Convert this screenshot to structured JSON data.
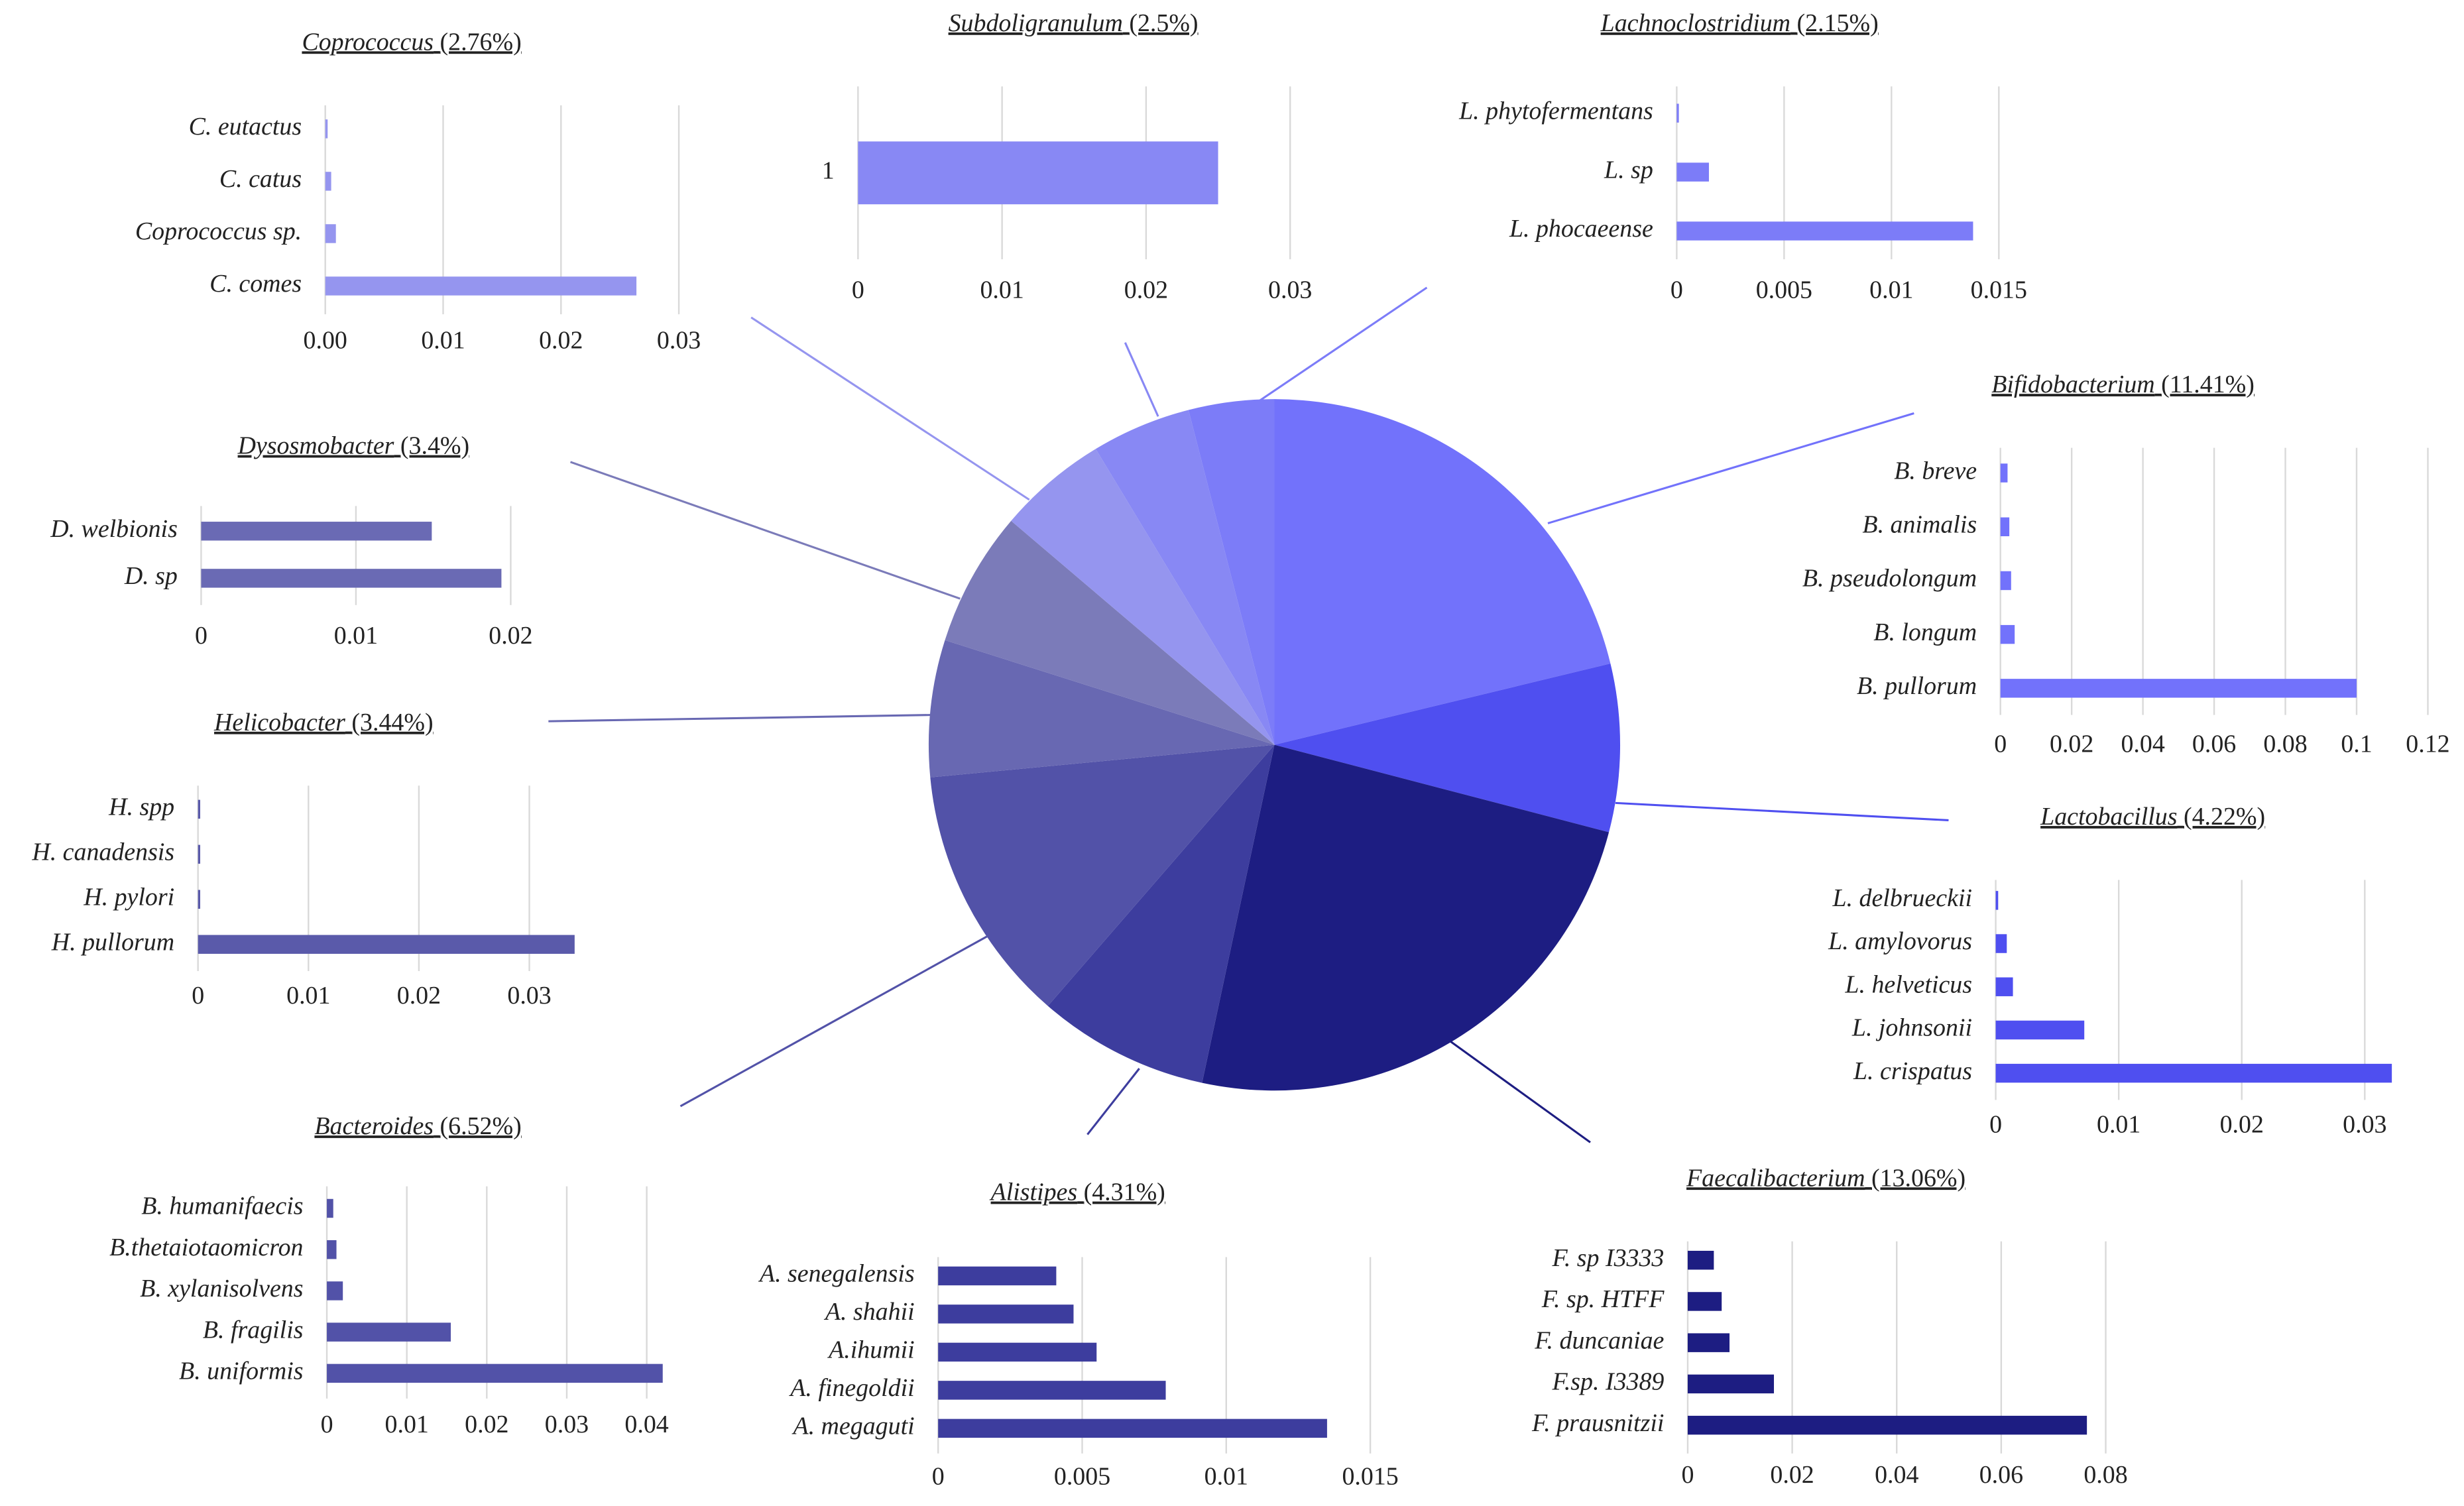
{
  "chart_data": [
    {
      "type": "pie",
      "categories": [
        "Bifidobacterium",
        "Lactobacillus",
        "Faecalibacterium",
        "Alistipes",
        "Bacteroides",
        "Helicobacter",
        "Dysosmobacter",
        "Coprococcus",
        "Subdoligranulum",
        "Lachnoclostridium"
      ],
      "values": [
        11.41,
        4.22,
        13.06,
        4.31,
        6.52,
        3.44,
        3.4,
        2.76,
        2.5,
        2.15
      ],
      "value_labels": [
        "(11.41%)",
        "(4.22%)",
        "(13.06%)",
        "(4.31%)",
        "(6.52%)",
        "(3.44%)",
        "(3.4%)",
        "(2.76%)",
        "(2.5%)",
        "(2.15%)"
      ],
      "colors": [
        "#7272fb",
        "#4f4ff0",
        "#1d1d82",
        "#3d3d9e",
        "#5252a8",
        "#6868b2",
        "#7b7bb9",
        "#9595ef",
        "#8888f4",
        "#7c7cf8"
      ]
    },
    {
      "type": "bar",
      "color": "#7272fb",
      "categories": [
        "B. breve",
        "B. animalis",
        "B. pseudolongum",
        "B. longum",
        "B. pullorum"
      ],
      "values": [
        0.002,
        0.0025,
        0.003,
        0.004,
        0.1
      ],
      "xlim": [
        0,
        0.12
      ],
      "xticks": [
        0,
        0.02,
        0.04,
        0.06,
        0.08,
        0.1,
        0.12
      ]
    },
    {
      "type": "bar",
      "color": "#4f4ff0",
      "categories": [
        "L. delbrueckii",
        "L. amylovorus",
        "L. helveticus",
        "L. johnsonii",
        "L. crispatus"
      ],
      "values": [
        0.0002,
        0.0009,
        0.0014,
        0.0072,
        0.0322
      ],
      "xlim": [
        0,
        0.035
      ],
      "xticks": [
        0,
        0.01,
        0.02,
        0.03
      ]
    },
    {
      "type": "bar",
      "color": "#1d1d82",
      "categories": [
        "F. sp I3333",
        "F. sp. HTFF",
        "F. duncaniae",
        "F.sp. I3389",
        "F. prausnitzii"
      ],
      "values": [
        0.005,
        0.0065,
        0.008,
        0.0165,
        0.0764
      ],
      "xlim": [
        0,
        0.08
      ],
      "xticks": [
        0,
        0.02,
        0.04,
        0.06,
        0.08
      ]
    },
    {
      "type": "bar",
      "color": "#3d3d9e",
      "categories": [
        "A. senegalensis",
        "A. shahii",
        "A.ihumii",
        "A. finegoldii",
        "A. megaguti"
      ],
      "values": [
        0.0041,
        0.0047,
        0.0055,
        0.0079,
        0.0135
      ],
      "xlim": [
        0,
        0.015
      ],
      "xticks": [
        0,
        0.005,
        0.01,
        0.015
      ]
    },
    {
      "type": "bar",
      "color": "#5252a8",
      "categories": [
        "B. humanifaecis",
        "B.thetaiotaomicron",
        "B. xylanisolvens",
        "B. fragilis",
        "B. uniformis"
      ],
      "values": [
        0.0008,
        0.0012,
        0.002,
        0.0155,
        0.042
      ],
      "xlim": [
        0,
        0.045
      ],
      "xticks": [
        0,
        0.01,
        0.02,
        0.03,
        0.04
      ]
    },
    {
      "type": "bar",
      "color": "#5a5aaa",
      "categories": [
        "H. spp",
        "H. canadensis",
        "H. pylori",
        "H. pullorum"
      ],
      "values": [
        0.0002,
        0.0002,
        0.0002,
        0.0341
      ],
      "xlim": [
        0,
        0.035
      ],
      "xticks": [
        0,
        0.01,
        0.02,
        0.03
      ]
    },
    {
      "type": "bar",
      "color": "#6a6ab4",
      "categories": [
        "D. welbionis",
        "D. sp"
      ],
      "values": [
        0.0149,
        0.0194
      ],
      "xlim": [
        0,
        0.02
      ],
      "xticks": [
        0,
        0.01,
        0.02
      ]
    },
    {
      "type": "bar",
      "color": "#9595ef",
      "categories": [
        "C. eutactus",
        "C. catus",
        "Coprococcus sp.",
        "C. comes"
      ],
      "values": [
        0.0002,
        0.0005,
        0.0009,
        0.0264
      ],
      "xlim": [
        0,
        0.03
      ],
      "xticks": [
        {
          "value": 0,
          "label": "0.00"
        },
        0.01,
        0.02,
        0.03
      ]
    },
    {
      "type": "bar",
      "color": "#8888f4",
      "categories": [
        "1"
      ],
      "values": [
        0.025
      ],
      "xlim": [
        0,
        0.03
      ],
      "xticks": [
        0,
        0.01,
        0.02,
        0.03
      ]
    },
    {
      "type": "bar",
      "color": "#7c7cf8",
      "categories": [
        "L. phytofermentans",
        "L. sp",
        "L. phocaeense"
      ],
      "values": [
        0.0001,
        0.0015,
        0.0138
      ],
      "xlim": [
        0,
        0.015
      ],
      "xticks": [
        0,
        0.005,
        0.01,
        0.015
      ]
    }
  ]
}
